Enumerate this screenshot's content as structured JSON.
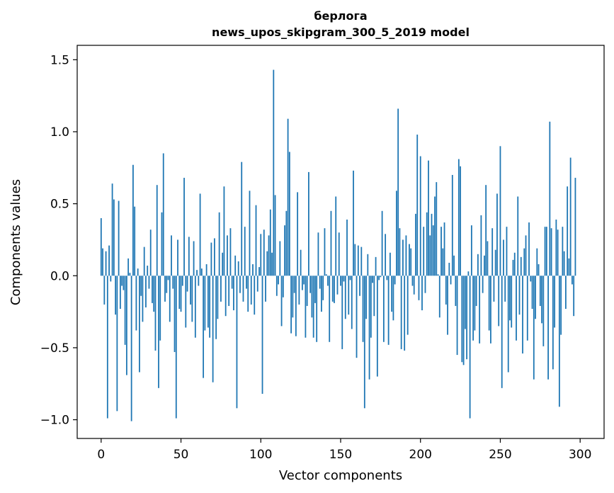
{
  "chart_data": {
    "type": "bar",
    "title": "берлога",
    "subtitle": "news_upos_skipgram_300_5_2019 model",
    "xlabel": "Vector components",
    "ylabel": "Components values",
    "xlim": [
      -15,
      315
    ],
    "ylim": [
      -1.13,
      1.6
    ],
    "xticks": [
      0,
      50,
      100,
      150,
      200,
      250,
      300
    ],
    "yticks": [
      -1.0,
      -0.5,
      0.0,
      0.5,
      1.0,
      1.5
    ],
    "xtick_labels": [
      "0",
      "50",
      "100",
      "150",
      "200",
      "250",
      "300"
    ],
    "ytick_labels": [
      "−1.0",
      "−0.5",
      "0.0",
      "0.5",
      "1.0",
      "1.5"
    ],
    "bar_color": "#1f77b4",
    "grid": false,
    "values": [
      0.4,
      0.19,
      -0.2,
      0.17,
      -0.99,
      0.21,
      -0.04,
      0.64,
      0.53,
      -0.27,
      -0.94,
      0.52,
      -0.23,
      -0.07,
      -0.1,
      -0.48,
      -0.69,
      0.12,
      0.02,
      -1.01,
      0.77,
      0.48,
      -0.38,
      0.05,
      -0.67,
      -0.14,
      -0.32,
      0.2,
      -0.22,
      0.07,
      -0.09,
      0.32,
      -0.19,
      -0.25,
      -0.52,
      0.63,
      -0.78,
      -0.45,
      0.44,
      0.85,
      -0.18,
      -0.12,
      -0.03,
      -0.32,
      0.28,
      -0.09,
      -0.53,
      -0.99,
      0.25,
      -0.23,
      -0.25,
      -0.07,
      0.68,
      -0.36,
      -0.11,
      0.27,
      -0.2,
      -0.32,
      0.24,
      -0.43,
      0.04,
      -0.07,
      0.57,
      0.05,
      -0.71,
      -0.38,
      0.08,
      -0.36,
      -0.43,
      0.23,
      -0.74,
      0.26,
      -0.44,
      -0.3,
      0.44,
      -0.18,
      0.16,
      0.62,
      -0.28,
      0.28,
      -0.21,
      0.33,
      -0.09,
      -0.24,
      0.14,
      -0.92,
      0.1,
      -0.12,
      0.79,
      -0.18,
      0.34,
      -0.09,
      -0.25,
      0.59,
      -0.2,
      0.08,
      -0.27,
      0.49,
      -0.11,
      0.06,
      0.29,
      -0.82,
      0.32,
      -0.18,
      0.17,
      0.28,
      0.46,
      0.16,
      1.43,
      0.56,
      -0.14,
      -0.06,
      0.24,
      -0.35,
      -0.15,
      0.35,
      0.45,
      1.09,
      0.86,
      -0.4,
      -0.29,
      -0.12,
      -0.42,
      0.58,
      -0.2,
      0.18,
      -0.1,
      -0.06,
      -0.43,
      -0.21,
      0.72,
      -0.12,
      -0.29,
      -0.43,
      -0.19,
      -0.46,
      0.3,
      -0.09,
      -0.25,
      -0.17,
      0.33,
      0.01,
      -0.07,
      -0.46,
      0.45,
      -0.18,
      -0.19,
      0.55,
      -0.13,
      0.3,
      -0.07,
      -0.51,
      -0.04,
      -0.3,
      0.39,
      -0.27,
      -0.03,
      -0.37,
      0.73,
      0.22,
      -0.57,
      0.21,
      -0.14,
      0.2,
      -0.46,
      -0.92,
      -0.3,
      0.15,
      -0.72,
      -0.43,
      -0.05,
      -0.28,
      0.13,
      -0.7,
      -0.03,
      -0.01,
      0.45,
      -0.46,
      0.29,
      -0.03,
      -0.48,
      0.16,
      -0.25,
      -0.31,
      -0.06,
      0.59,
      1.16,
      0.33,
      -0.51,
      0.25,
      -0.52,
      0.28,
      -0.41,
      0.22,
      0.19,
      -0.07,
      -0.13,
      0.43,
      0.98,
      -0.17,
      0.83,
      -0.24,
      0.34,
      -0.12,
      0.44,
      0.8,
      0.28,
      0.43,
      0.35,
      0.55,
      0.65,
      0.01,
      -0.29,
      0.34,
      0.19,
      0.37,
      -0.2,
      -0.41,
      0.09,
      -0.06,
      0.7,
      0.14,
      -0.21,
      -0.55,
      0.81,
      0.76,
      -0.6,
      -0.62,
      -0.37,
      -0.58,
      0.03,
      -0.99,
      0.35,
      -0.45,
      -0.38,
      -0.21,
      0.15,
      -0.47,
      0.42,
      -0.12,
      0.14,
      0.63,
      0.24,
      -0.38,
      -0.47,
      0.33,
      -0.18,
      0.18,
      0.57,
      -0.35,
      0.9,
      -0.78,
      0.25,
      -0.18,
      0.34,
      -0.67,
      -0.31,
      -0.36,
      0.11,
      0.16,
      -0.45,
      0.55,
      -0.27,
      0.13,
      -0.54,
      0.19,
      0.28,
      -0.45,
      0.37,
      -0.04,
      -0.23,
      -0.72,
      -0.3,
      0.19,
      0.08,
      -0.21,
      -0.33,
      -0.49,
      0.34,
      0.34,
      -0.72,
      1.07,
      0.33,
      -0.65,
      -0.36,
      0.39,
      0.32,
      -0.91,
      -0.41,
      0.34,
      0.17,
      -0.23,
      0.62,
      0.12,
      0.82,
      -0.06,
      -0.28,
      0.68
    ]
  }
}
